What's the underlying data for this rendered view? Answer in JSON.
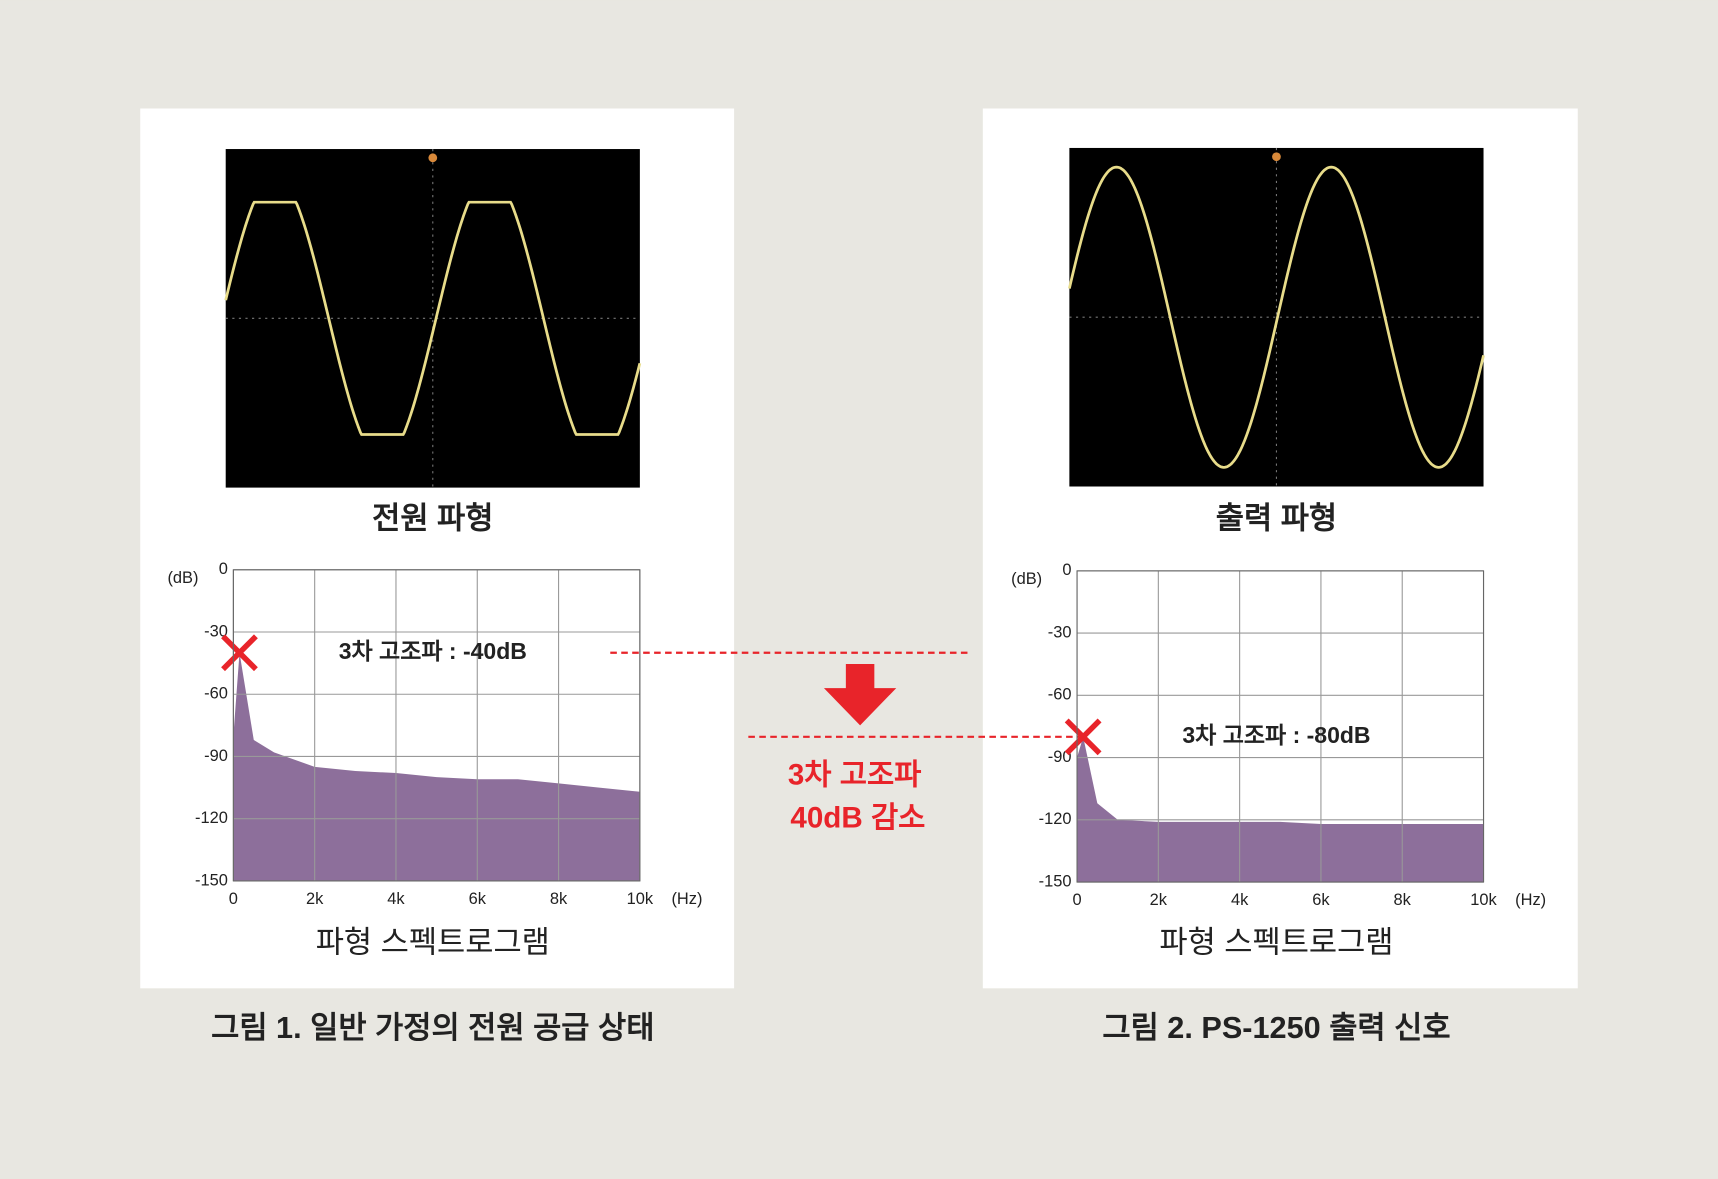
{
  "chart_data": [
    {
      "type": "area",
      "waveform_title": "전원 파형",
      "title": "파형 스펙트로그램",
      "caption": "그림 1. 일반 가정의 전원 공급 상태",
      "xlabel": "(Hz)",
      "ylabel": "(dB)",
      "color": "#8d6f9b",
      "x": [
        0,
        150,
        500,
        1000,
        2000,
        3000,
        4000,
        5000,
        6000,
        7000,
        8000,
        9000,
        10000
      ],
      "values": [
        -80,
        -40,
        -82,
        -88,
        -95,
        -97,
        -98,
        -100,
        -101,
        -101,
        -103,
        -105,
        -107
      ],
      "xlim": [
        0,
        10000
      ],
      "ylim": [
        -150,
        0
      ],
      "xticks": [
        0,
        {
          "value": 2000,
          "label": "2k"
        },
        {
          "value": 4000,
          "label": "4k"
        },
        {
          "value": 6000,
          "label": "6k"
        },
        {
          "value": 8000,
          "label": "8k"
        },
        {
          "value": 10000,
          "label": "10k"
        }
      ],
      "yticks": [
        0,
        -30,
        -60,
        -90,
        -120,
        -150
      ],
      "grid": true,
      "annotations": [
        {
          "text": "3차 고조파 : -40dB",
          "x": 150,
          "y": -40
        }
      ]
    },
    {
      "type": "area",
      "waveform_title": "출력 파형",
      "title": "파형 스펙트로그램",
      "caption": "그림 2. PS-1250 출력 신호",
      "xlabel": "(Hz)",
      "ylabel": "(dB)",
      "color": "#8d6f9b",
      "x": [
        0,
        150,
        500,
        1000,
        2000,
        3000,
        4000,
        5000,
        6000,
        7000,
        8000,
        9000,
        10000
      ],
      "values": [
        -90,
        -80,
        -112,
        -120,
        -121,
        -121,
        -121,
        -121,
        -122,
        -122,
        -122,
        -122,
        -122
      ],
      "xlim": [
        0,
        10000
      ],
      "ylim": [
        -150,
        0
      ],
      "xticks": [
        0,
        {
          "value": 2000,
          "label": "2k"
        },
        {
          "value": 4000,
          "label": "4k"
        },
        {
          "value": 6000,
          "label": "6k"
        },
        {
          "value": 8000,
          "label": "8k"
        },
        {
          "value": 10000,
          "label": "10k"
        }
      ],
      "yticks": [
        0,
        -30,
        -60,
        -90,
        -120,
        -150
      ],
      "grid": true,
      "annotations": [
        {
          "text": "3차 고조파 : -80dB",
          "x": 150,
          "y": -80
        }
      ]
    }
  ],
  "reduction_note": [
    "3차 고조파",
    "40dB 감소"
  ]
}
